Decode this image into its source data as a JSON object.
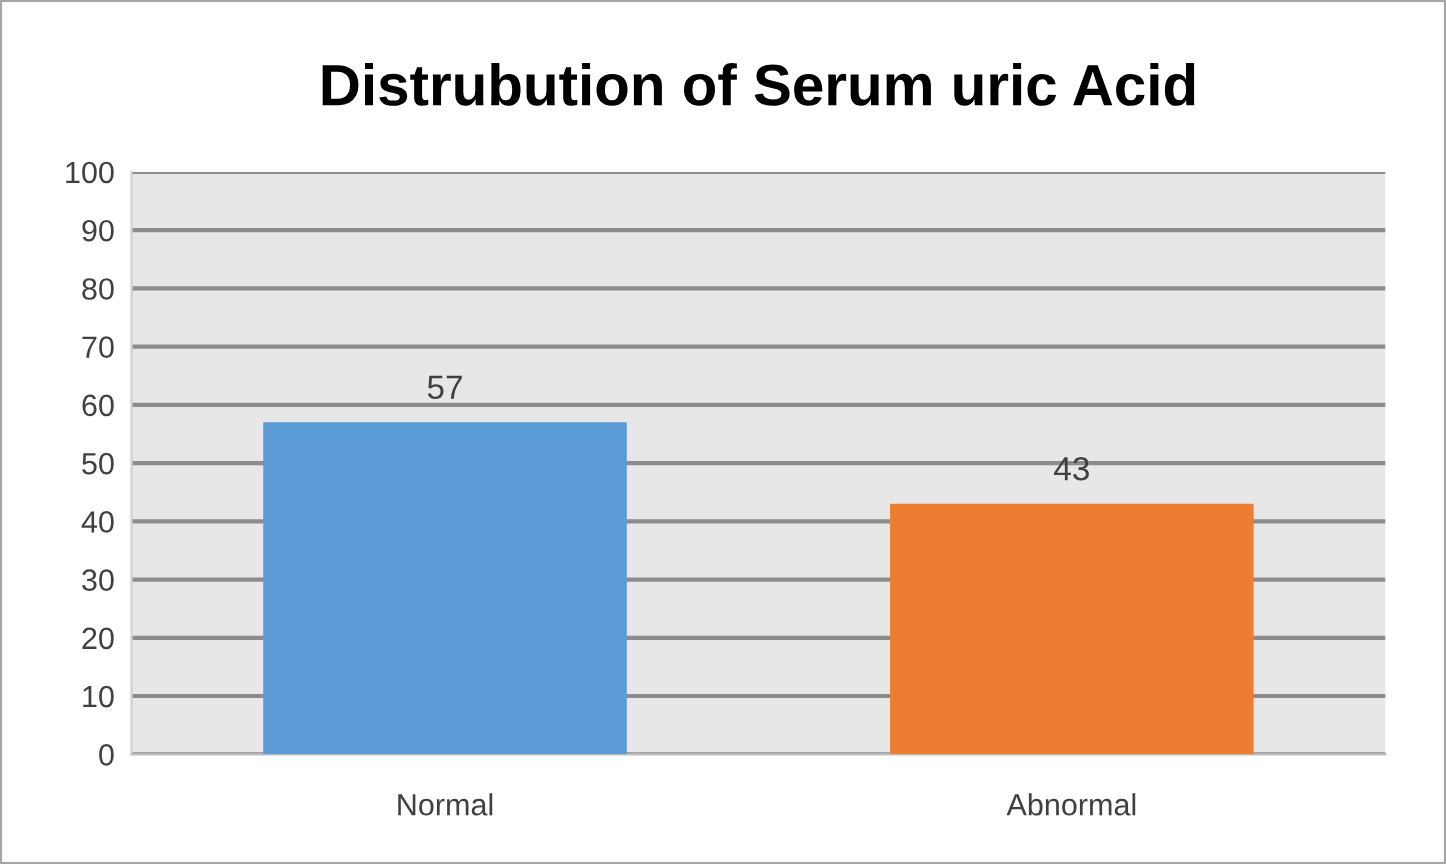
{
  "chart_data": {
    "type": "bar",
    "title": "Distrubution of Serum uric Acid",
    "categories": [
      "Normal",
      "Abnormal"
    ],
    "values": [
      57,
      43
    ],
    "colors": [
      "#5b9bd5",
      "#ed7d31"
    ],
    "ylim": [
      0,
      100
    ],
    "yticks": [
      0,
      10,
      20,
      30,
      40,
      50,
      60,
      70,
      80,
      90,
      100
    ],
    "grid": "y",
    "data_labels": true
  }
}
